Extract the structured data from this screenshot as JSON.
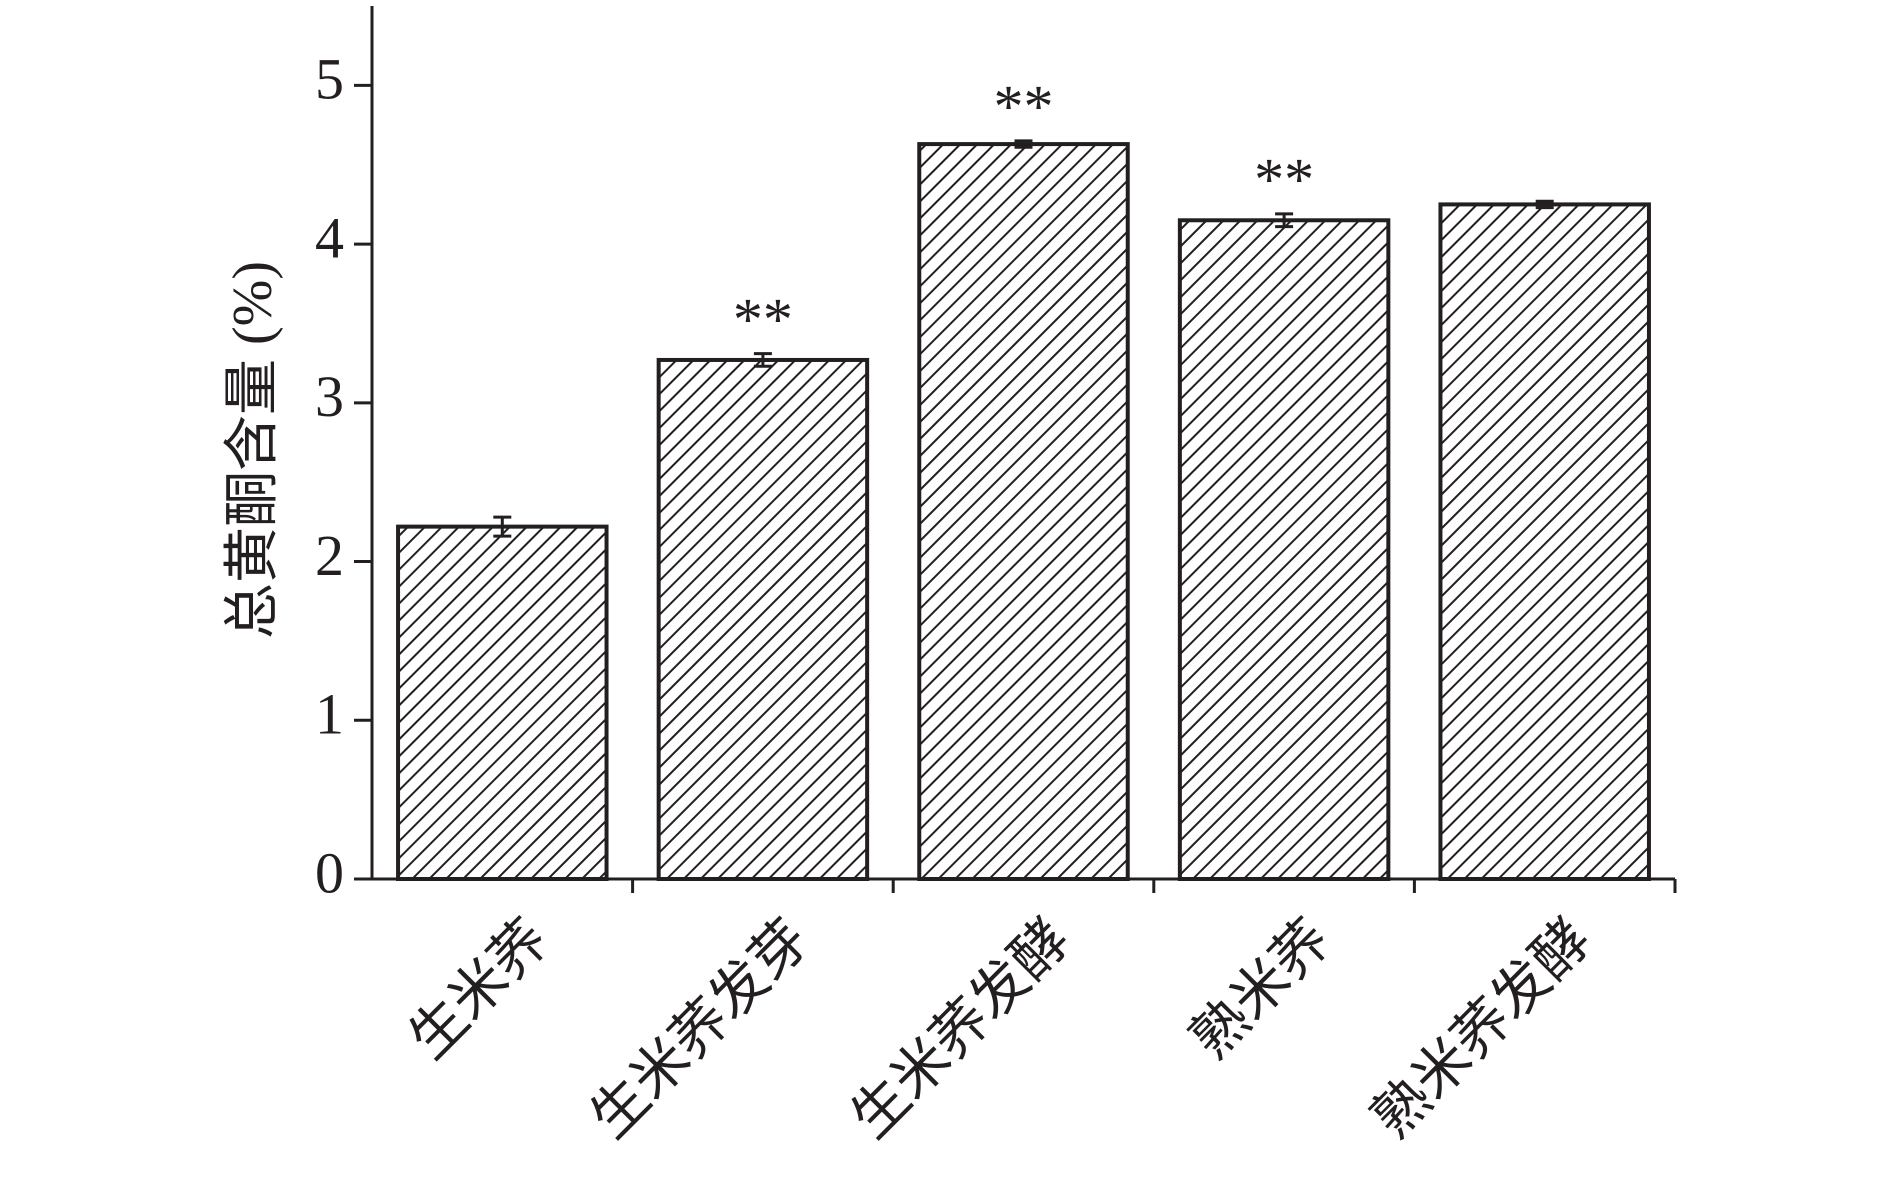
{
  "chart_data": {
    "type": "bar",
    "y_label": "总黄酮含量 (%)",
    "categories": [
      "生米荞",
      "生米荞发芽",
      "生米荞发酵",
      "熟米荞",
      "熟米荞发酵"
    ],
    "values": [
      2.22,
      3.27,
      4.63,
      4.15,
      4.25
    ],
    "errors": [
      0.06,
      0.04,
      0.02,
      0.04,
      0.02
    ],
    "significance": [
      null,
      "**",
      "**",
      "**",
      null
    ],
    "color": "#231f20",
    "hatch": true,
    "ylim": [
      0,
      5.5
    ],
    "yticks": [
      0,
      1,
      2,
      3,
      4,
      5
    ],
    "grid": false
  }
}
